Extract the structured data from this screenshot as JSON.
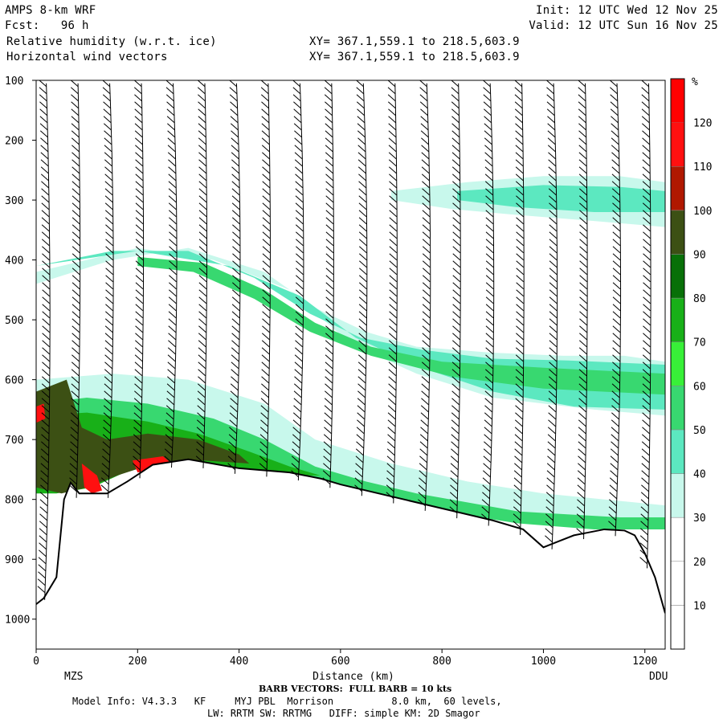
{
  "header": {
    "model": "AMPS 8-km WRF",
    "fcst": "Fcst:   96 h",
    "field1": "Relative humidity (w.r.t. ice)",
    "field2": "Horizontal wind vectors",
    "xy1": "XY= 367.1,559.1 to 218.5,603.9",
    "xy2": "XY= 367.1,559.1 to 218.5,603.9",
    "init": "Init: 12 UTC Wed 12 Nov 25",
    "valid": "Valid: 12 UTC Sun 16 Nov 25"
  },
  "footer": {
    "barb_note": "BARB VECTORS:  FULL BARB = 10 kts",
    "model_info": "Model Info: V4.3.3   KF     MYJ PBL  Morrison          8.0 km,  60 levels,",
    "physics": "LW: RRTM SW: RRTMG   DIFF: simple KM: 2D Smagor"
  },
  "chart_data": {
    "type": "heatmap",
    "title": "Relative humidity (w.r.t. ice)",
    "xlabel": "Distance (km)",
    "ylabel": "",
    "x_endpoints": {
      "left": "MZS",
      "right": "DDU"
    },
    "xlim": [
      0,
      1240
    ],
    "ylim": [
      1050,
      100
    ],
    "x_ticks": [
      0,
      200,
      400,
      600,
      800,
      1000,
      1200
    ],
    "y_ticks": [
      100,
      200,
      300,
      400,
      500,
      600,
      700,
      800,
      900,
      1000
    ],
    "colorbar": {
      "unit": "%",
      "levels": [
        10,
        20,
        30,
        40,
        50,
        60,
        70,
        80,
        90,
        100,
        110,
        120
      ],
      "colors": [
        "#ffffff",
        "#ffffff",
        "#ffffff",
        "#c8f8ec",
        "#5ce8c0",
        "#38d870",
        "#38f038",
        "#18b018",
        "#087008",
        "#3c5014",
        "#b01800",
        "#ff1010"
      ]
    },
    "terrain": [
      [
        0,
        975
      ],
      [
        15,
        965
      ],
      [
        40,
        930
      ],
      [
        55,
        800
      ],
      [
        68,
        772
      ],
      [
        85,
        790
      ],
      [
        105,
        790
      ],
      [
        140,
        790
      ],
      [
        180,
        770
      ],
      [
        230,
        742
      ],
      [
        300,
        733
      ],
      [
        400,
        748
      ],
      [
        500,
        755
      ],
      [
        560,
        765
      ],
      [
        600,
        775
      ],
      [
        700,
        795
      ],
      [
        800,
        815
      ],
      [
        900,
        835
      ],
      [
        960,
        850
      ],
      [
        1000,
        880
      ],
      [
        1030,
        870
      ],
      [
        1060,
        860
      ],
      [
        1090,
        855
      ],
      [
        1120,
        850
      ],
      [
        1160,
        852
      ],
      [
        1180,
        860
      ],
      [
        1200,
        890
      ],
      [
        1220,
        930
      ],
      [
        1240,
        990
      ]
    ],
    "rh_bands": [
      {
        "level": 40,
        "poly": [
          [
            0,
            440
          ],
          [
            150,
            400
          ],
          [
            300,
            380
          ],
          [
            450,
            420
          ],
          [
            550,
            480
          ],
          [
            650,
            520
          ],
          [
            750,
            545
          ],
          [
            900,
            555
          ],
          [
            1040,
            560
          ],
          [
            1160,
            560
          ],
          [
            1240,
            570
          ],
          [
            1240,
            660
          ],
          [
            1100,
            650
          ],
          [
            900,
            630
          ],
          [
            750,
            590
          ],
          [
            620,
            540
          ],
          [
            500,
            450
          ],
          [
            350,
            400
          ],
          [
            200,
            380
          ],
          [
            0,
            420
          ]
        ]
      },
      {
        "level": 50,
        "poly": [
          [
            0,
            410
          ],
          [
            150,
            385
          ],
          [
            300,
            385
          ],
          [
            430,
            430
          ],
          [
            540,
            490
          ],
          [
            640,
            530
          ],
          [
            760,
            550
          ],
          [
            900,
            565
          ],
          [
            1050,
            568
          ],
          [
            1240,
            575
          ],
          [
            1240,
            650
          ],
          [
            1060,
            645
          ],
          [
            900,
            620
          ],
          [
            760,
            580
          ],
          [
            630,
            530
          ],
          [
            520,
            460
          ],
          [
            380,
            410
          ],
          [
            200,
            385
          ],
          [
            0,
            410
          ]
        ]
      },
      {
        "level": 60,
        "poly": [
          [
            200,
            395
          ],
          [
            330,
            405
          ],
          [
            450,
            450
          ],
          [
            550,
            505
          ],
          [
            660,
            545
          ],
          [
            800,
            570
          ],
          [
            1000,
            580
          ],
          [
            1240,
            590
          ],
          [
            1240,
            625
          ],
          [
            1000,
            615
          ],
          [
            820,
            595
          ],
          [
            660,
            560
          ],
          [
            540,
            520
          ],
          [
            430,
            465
          ],
          [
            310,
            420
          ],
          [
            200,
            410
          ]
        ]
      },
      {
        "level": 40,
        "poly": [
          [
            700,
            285
          ],
          [
            850,
            270
          ],
          [
            1000,
            260
          ],
          [
            1150,
            260
          ],
          [
            1240,
            270
          ],
          [
            1240,
            345
          ],
          [
            1100,
            335
          ],
          [
            950,
            325
          ],
          [
            820,
            315
          ],
          [
            700,
            300
          ]
        ]
      },
      {
        "level": 50,
        "poly": [
          [
            830,
            285
          ],
          [
            1000,
            275
          ],
          [
            1150,
            278
          ],
          [
            1240,
            285
          ],
          [
            1240,
            320
          ],
          [
            1100,
            320
          ],
          [
            950,
            312
          ],
          [
            830,
            300
          ]
        ]
      },
      {
        "level": 40,
        "poly": [
          [
            0,
            600
          ],
          [
            150,
            590
          ],
          [
            300,
            600
          ],
          [
            450,
            640
          ],
          [
            550,
            700
          ],
          [
            700,
            740
          ],
          [
            850,
            770
          ],
          [
            1000,
            790
          ],
          [
            1240,
            810
          ],
          [
            1240,
            830
          ],
          [
            1100,
            835
          ],
          [
            1000,
            840
          ],
          [
            850,
            820
          ],
          [
            700,
            800
          ],
          [
            560,
            775
          ],
          [
            400,
            760
          ],
          [
            250,
            745
          ],
          [
            100,
            760
          ],
          [
            0,
            790
          ]
        ]
      },
      {
        "level": 60,
        "poly": [
          [
            0,
            640
          ],
          [
            100,
            630
          ],
          [
            220,
            640
          ],
          [
            350,
            665
          ],
          [
            450,
            700
          ],
          [
            550,
            745
          ],
          [
            650,
            770
          ],
          [
            750,
            790
          ],
          [
            850,
            805
          ],
          [
            950,
            820
          ],
          [
            1050,
            825
          ],
          [
            1150,
            830
          ],
          [
            1240,
            830
          ],
          [
            1240,
            850
          ],
          [
            1100,
            850
          ],
          [
            950,
            840
          ],
          [
            800,
            820
          ],
          [
            650,
            795
          ],
          [
            500,
            770
          ],
          [
            350,
            750
          ],
          [
            200,
            745
          ],
          [
            100,
            770
          ],
          [
            0,
            790
          ]
        ]
      },
      {
        "level": 80,
        "poly": [
          [
            0,
            660
          ],
          [
            100,
            655
          ],
          [
            220,
            670
          ],
          [
            320,
            690
          ],
          [
            420,
            720
          ],
          [
            500,
            745
          ],
          [
            560,
            760
          ],
          [
            500,
            760
          ],
          [
            400,
            750
          ],
          [
            300,
            740
          ],
          [
            200,
            745
          ],
          [
            110,
            780
          ],
          [
            40,
            790
          ],
          [
            0,
            790
          ]
        ]
      },
      {
        "level": 100,
        "poly": [
          [
            0,
            620
          ],
          [
            60,
            600
          ],
          [
            90,
            680
          ],
          [
            140,
            700
          ],
          [
            220,
            690
          ],
          [
            320,
            700
          ],
          [
            400,
            725
          ],
          [
            420,
            740
          ],
          [
            330,
            735
          ],
          [
            240,
            738
          ],
          [
            160,
            760
          ],
          [
            100,
            780
          ],
          [
            50,
            790
          ],
          [
            0,
            780
          ]
        ]
      },
      {
        "level": 120,
        "poly": [
          [
            90,
            740
          ],
          [
            120,
            760
          ],
          [
            130,
            785
          ],
          [
            110,
            790
          ],
          [
            95,
            780
          ]
        ]
      },
      {
        "level": 120,
        "poly": [
          [
            190,
            735
          ],
          [
            250,
            728
          ],
          [
            270,
            742
          ],
          [
            200,
            755
          ]
        ]
      },
      {
        "level": 120,
        "poly": [
          [
            0,
            645
          ],
          [
            15,
            640
          ],
          [
            18,
            665
          ],
          [
            0,
            672
          ]
        ]
      }
    ]
  }
}
